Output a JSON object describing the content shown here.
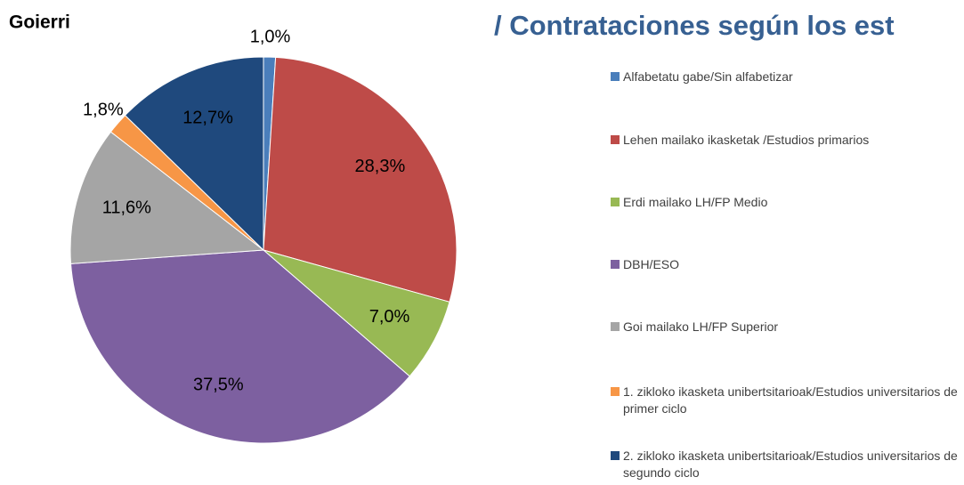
{
  "chart_data": {
    "type": "pie",
    "title": "Goierri",
    "subtitle": "/ Contrataciones según los est",
    "categories": [
      "Alfabetatu gabe/Sin alfabetizar",
      "Lehen mailako ikasketak /Estudios primarios",
      "Erdi mailako LH/FP Medio",
      "DBH/ESO",
      "Goi mailako LH/FP Superior",
      "1. zikloko ikasketa unibertsitarioak/Estudios universitarios de primer ciclo",
      "2. zikloko ikasketa unibertsitarioak/Estudios universitarios de segundo ciclo"
    ],
    "values": [
      1.0,
      28.3,
      7.0,
      37.5,
      11.6,
      1.8,
      12.7
    ],
    "value_labels": [
      "1,0%",
      "28,3%",
      "7,0%",
      "37,5%",
      "11,6%",
      "1,8%",
      "12,7%"
    ],
    "colors": [
      "#4a7ebb",
      "#be4b48",
      "#98b954",
      "#7d60a0",
      "#a5a5a5",
      "#f79646",
      "#1f497d"
    ],
    "legend": "right"
  }
}
